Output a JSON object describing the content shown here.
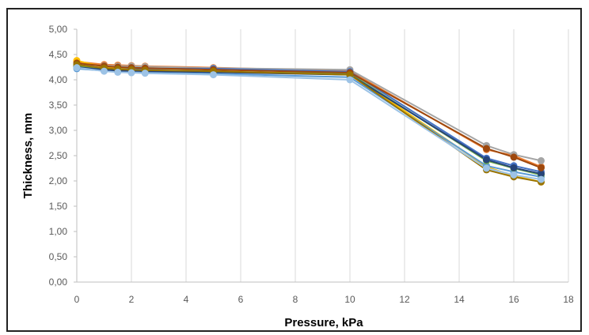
{
  "chart_data": {
    "type": "line",
    "xlabel": "Pressure, kPa",
    "ylabel": "Thickness, mm",
    "xlim": [
      0,
      18
    ],
    "ylim": [
      0,
      5
    ],
    "x_ticks": [
      "0",
      "2",
      "4",
      "6",
      "8",
      "10",
      "12",
      "14",
      "16",
      "18"
    ],
    "y_ticks": [
      "0,00",
      "0,50",
      "1,00",
      "1,50",
      "2,00",
      "2,50",
      "3,00",
      "3,50",
      "4,00",
      "4,50",
      "5,00"
    ],
    "grid": "vertical",
    "legend": "none",
    "x": [
      0,
      1,
      1.5,
      2,
      2.5,
      5,
      10,
      15,
      16,
      17
    ],
    "series": [
      {
        "color": "#ed7d31",
        "values": [
          4.36,
          4.3,
          4.29,
          4.28,
          4.27,
          4.24,
          4.17,
          2.62,
          2.5,
          2.28
        ]
      },
      {
        "color": "#a5a5a5",
        "values": [
          4.3,
          4.28,
          4.27,
          4.27,
          4.26,
          4.23,
          4.2,
          2.7,
          2.52,
          2.4
        ]
      },
      {
        "color": "#4472c4",
        "values": [
          4.26,
          4.24,
          4.23,
          4.23,
          4.22,
          4.22,
          4.16,
          2.45,
          2.3,
          2.18
        ]
      },
      {
        "color": "#ffc000",
        "values": [
          4.38,
          4.25,
          4.22,
          4.2,
          4.18,
          4.15,
          4.12,
          2.28,
          2.1,
          1.98
        ]
      },
      {
        "color": "#5b9bd5",
        "values": [
          4.22,
          4.18,
          4.16,
          4.15,
          4.14,
          4.12,
          4.05,
          2.3,
          2.18,
          2.08
        ]
      },
      {
        "color": "#70ad47",
        "values": [
          4.28,
          4.22,
          4.2,
          4.19,
          4.18,
          4.16,
          4.12,
          2.4,
          2.25,
          2.12
        ]
      },
      {
        "color": "#264478",
        "values": [
          4.25,
          4.2,
          4.18,
          4.18,
          4.17,
          4.15,
          4.1,
          2.42,
          2.26,
          2.14
        ]
      },
      {
        "color": "#9e480e",
        "values": [
          4.33,
          4.27,
          4.25,
          4.24,
          4.23,
          4.2,
          4.14,
          2.64,
          2.47,
          2.26
        ]
      },
      {
        "color": "#997300",
        "values": [
          4.3,
          4.23,
          4.21,
          4.2,
          4.19,
          4.17,
          4.1,
          2.22,
          2.08,
          1.98
        ]
      },
      {
        "color": "#9dc3e6",
        "values": [
          4.24,
          4.17,
          4.15,
          4.14,
          4.13,
          4.1,
          4.0,
          2.25,
          2.12,
          2.03
        ]
      }
    ]
  }
}
